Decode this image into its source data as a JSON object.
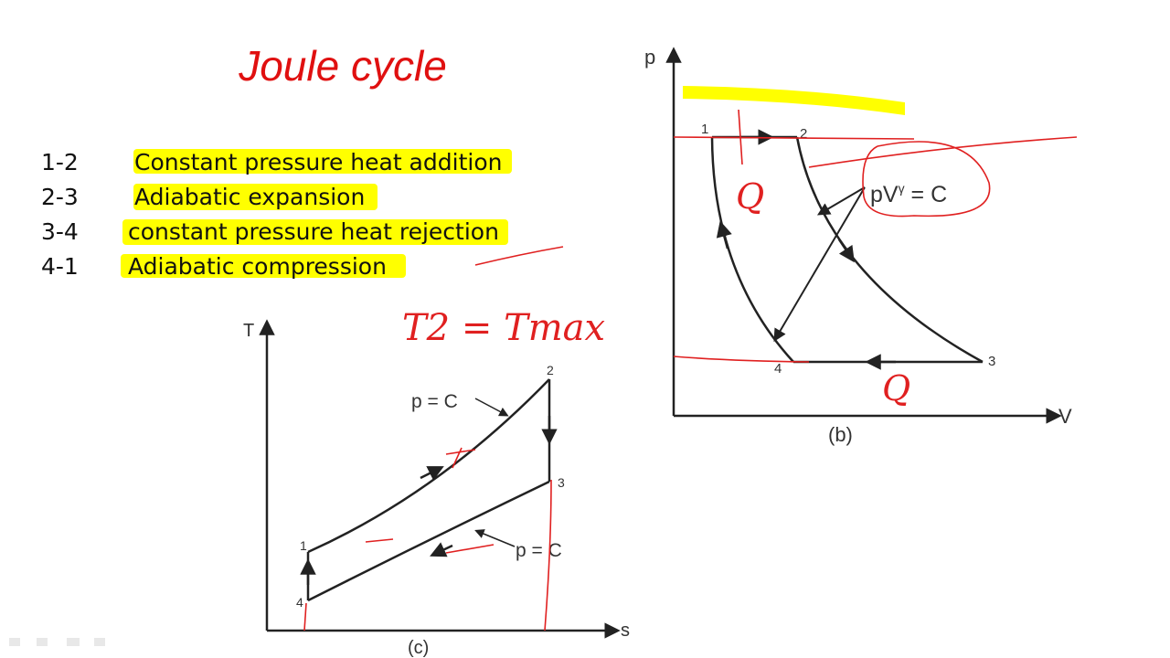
{
  "title": "Joule cycle",
  "processes": [
    {
      "step": "1-2",
      "text": "Constant pressure heat addition"
    },
    {
      "step": "2-3",
      "text": "Adiabatic expansion"
    },
    {
      "step": "3-4",
      "text": "constant pressure heat rejection"
    },
    {
      "step": "4-1",
      "text": "Adiabatic compression"
    }
  ],
  "ts_diagram": {
    "y_axis": "T",
    "x_axis": "s",
    "caption": "(c)",
    "points": [
      "1",
      "2",
      "3",
      "4"
    ],
    "labels": [
      "p = C",
      "p = C"
    ]
  },
  "pv_diagram": {
    "y_axis": "p",
    "x_axis": "V",
    "caption": "(b)",
    "points": [
      "1",
      "2",
      "3",
      "4"
    ],
    "label": {
      "base": "pV",
      "superscript": "γ",
      "tail": " = C"
    }
  },
  "annotations": [
    "T2 = Tmax",
    "Q",
    "Q"
  ]
}
